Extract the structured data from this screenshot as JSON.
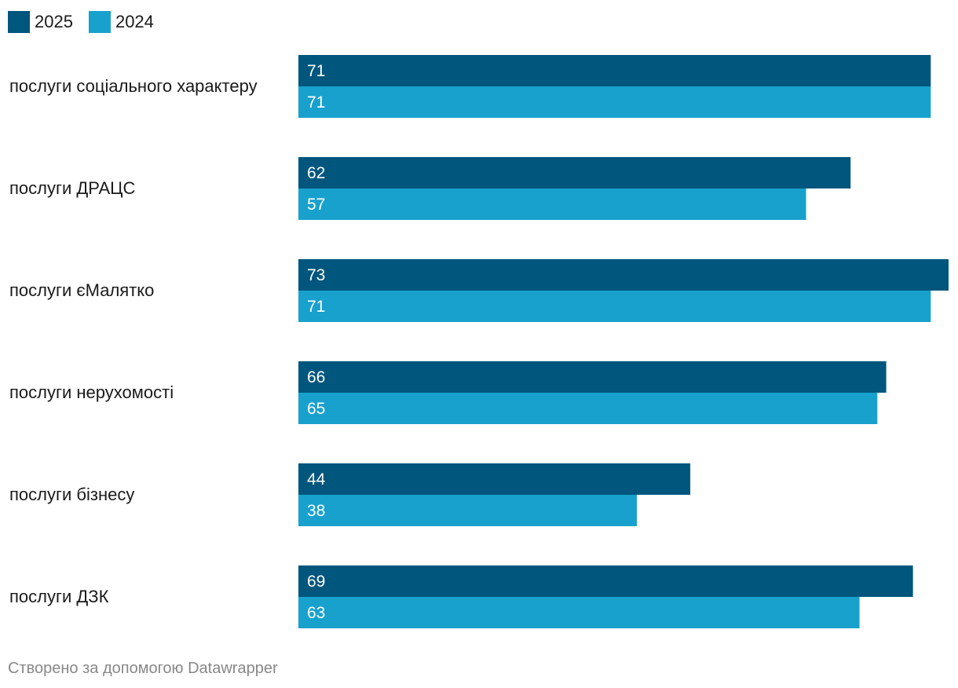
{
  "chart_data": {
    "type": "bar",
    "orientation": "horizontal",
    "categories": [
      "послуги соціального характеру",
      "послуги ДРАЦС",
      "послуги єМалятко",
      "послуги нерухомості",
      "послуги бізнесу",
      "послуги ДЗК"
    ],
    "series": [
      {
        "name": "2025",
        "color": "#00567d",
        "values": [
          71,
          62,
          73,
          66,
          44,
          69
        ]
      },
      {
        "name": "2024",
        "color": "#18a1cd",
        "values": [
          71,
          57,
          71,
          65,
          38,
          63
        ]
      }
    ],
    "xlim": [
      0,
      73
    ],
    "legend_position": "top-left",
    "grid": false,
    "title": "",
    "xlabel": "",
    "ylabel": ""
  },
  "legend": {
    "items": [
      {
        "label": "2025",
        "color": "#00567d"
      },
      {
        "label": "2024",
        "color": "#18a1cd"
      }
    ]
  },
  "footer": {
    "text": "Створено за допомогою Datawrapper"
  }
}
